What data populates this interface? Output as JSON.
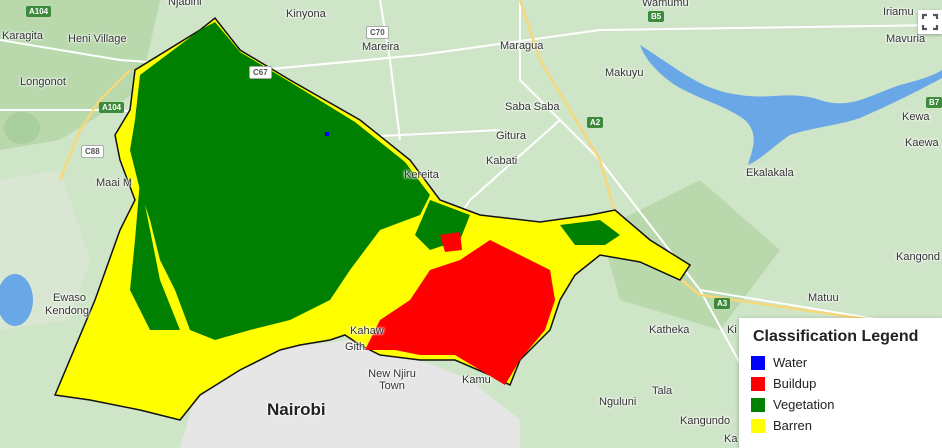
{
  "places": [
    {
      "name": "Njabini",
      "type": "town"
    },
    {
      "name": "Kinyona",
      "type": "town"
    },
    {
      "name": "Wamumu",
      "type": "town"
    },
    {
      "name": "Iriamu",
      "type": "town"
    },
    {
      "name": "Karagita",
      "type": "town"
    },
    {
      "name": "Heni Village",
      "type": "town"
    },
    {
      "name": "Mareira",
      "type": "town"
    },
    {
      "name": "Maragua",
      "type": "town"
    },
    {
      "name": "Mavuria",
      "type": "town"
    },
    {
      "name": "Longonot",
      "type": "town"
    },
    {
      "name": "Makuyu",
      "type": "town"
    },
    {
      "name": "Saba Saba",
      "type": "town"
    },
    {
      "name": "Gitura",
      "type": "town"
    },
    {
      "name": "Kewa",
      "type": "town"
    },
    {
      "name": "Kaewa",
      "type": "town"
    },
    {
      "name": "Kabati",
      "type": "town"
    },
    {
      "name": "Kereita",
      "type": "town"
    },
    {
      "name": "Maai M",
      "type": "town"
    },
    {
      "name": "Ekalakala",
      "type": "town"
    },
    {
      "name": "Kangond",
      "type": "town"
    },
    {
      "name": "Ewaso",
      "type": "town"
    },
    {
      "name": "Kendong",
      "type": "town"
    },
    {
      "name": "Matuu",
      "type": "town"
    },
    {
      "name": "Katheka",
      "type": "town"
    },
    {
      "name": "Ki",
      "type": "town"
    },
    {
      "name": "Kahaw",
      "type": "town"
    },
    {
      "name": "Gith",
      "type": "town"
    },
    {
      "name": "New Njiru Town",
      "type": "town"
    },
    {
      "name": "Kamu",
      "type": "town"
    },
    {
      "name": "Tala",
      "type": "town"
    },
    {
      "name": "Nairobi",
      "type": "city"
    },
    {
      "name": "Nguluni",
      "type": "town"
    },
    {
      "name": "Kangundo",
      "type": "town"
    },
    {
      "name": "Ka",
      "type": "town"
    }
  ],
  "road_shields": [
    {
      "label": "A104",
      "style": "green"
    },
    {
      "label": "C70",
      "style": "white"
    },
    {
      "label": "B5",
      "style": "green"
    },
    {
      "label": "C67",
      "style": "white"
    },
    {
      "label": "A104",
      "style": "green"
    },
    {
      "label": "C88",
      "style": "white"
    },
    {
      "label": "A2",
      "style": "green"
    },
    {
      "label": "B7",
      "style": "green"
    },
    {
      "label": "A3",
      "style": "green"
    }
  ],
  "legend": {
    "title": "Classification Legend",
    "items": [
      {
        "label": "Water",
        "color": "#0000ff"
      },
      {
        "label": "Buildup",
        "color": "#ff0000"
      },
      {
        "label": "Vegetation",
        "color": "#008000"
      },
      {
        "label": "Barren",
        "color": "#ffff00"
      }
    ]
  },
  "colors": {
    "base_map": "#cfe5c8",
    "urban": "#e6e6e6",
    "lake": "#6aa7e6",
    "boundary": "#111111"
  },
  "controls": {
    "fullscreen_icon": "fullscreen-icon"
  }
}
